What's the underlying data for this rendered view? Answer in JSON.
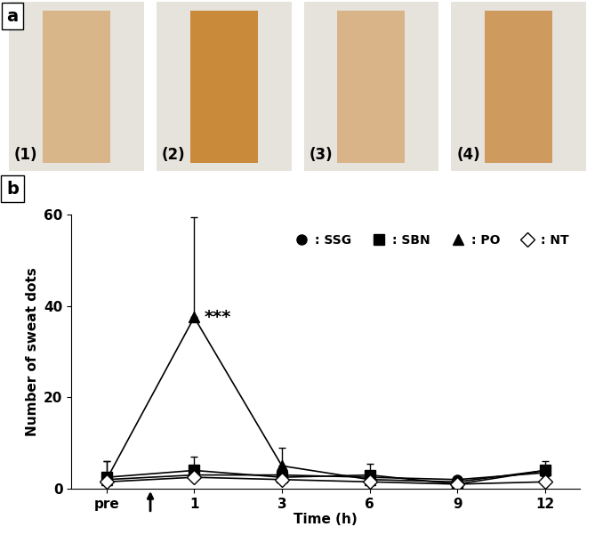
{
  "figure_a": {
    "panel_label": "a",
    "photo_labels": [
      "(1)",
      "(2)",
      "(3)",
      "(4)"
    ]
  },
  "chart_data": {
    "type": "line",
    "panel_label": "b",
    "x_label": "Time (h)",
    "y_label": "Number of sweat dots",
    "categories": [
      "pre",
      "1",
      "3",
      "6",
      "9",
      "12"
    ],
    "ylim": [
      0,
      60
    ],
    "yticks": [
      0,
      20,
      40,
      60
    ],
    "grid": false,
    "legend": "upper right",
    "series": [
      {
        "name": ": SSG",
        "color": "#000000",
        "marker": "circle",
        "values": [
          2,
          3,
          3,
          2.5,
          2,
          3.5
        ],
        "errors": [
          1,
          1,
          1,
          1,
          0.5,
          1
        ]
      },
      {
        "name": ": SBN",
        "color": "#000000",
        "marker": "square",
        "values": [
          2.5,
          4,
          2.5,
          3,
          1,
          4
        ],
        "errors": [
          3.5,
          3,
          1,
          2.5,
          0.5,
          2
        ]
      },
      {
        "name": ": PO",
        "color": "#000000",
        "marker": "triangle",
        "values": [
          2,
          37.5,
          5,
          2,
          1.5,
          4
        ],
        "errors": [
          4,
          22,
          4,
          1,
          0.5,
          1
        ]
      },
      {
        "name": ": NT",
        "color": "#000000",
        "marker": "open_diamond",
        "values": [
          1.5,
          2.5,
          2,
          1.5,
          1,
          1.5
        ],
        "errors": [
          0.5,
          0.5,
          0.5,
          0.5,
          0.5,
          0.5
        ]
      }
    ],
    "annotations": [
      {
        "text": "***",
        "category": "1",
        "series": ": PO"
      }
    ]
  }
}
